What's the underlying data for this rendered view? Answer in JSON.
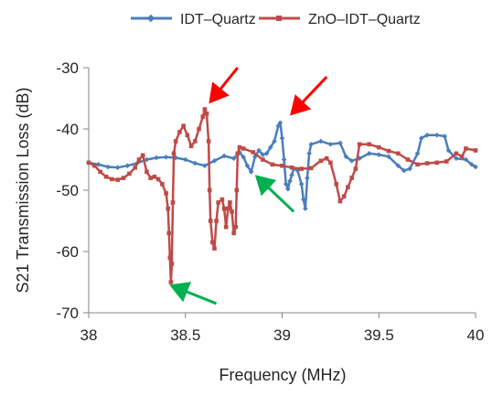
{
  "chart_data": {
    "type": "line",
    "title": "",
    "xlabel": "Frequency (MHz)",
    "ylabel": "S21 Transmission Loss (dB)",
    "xlim": [
      38,
      40
    ],
    "ylim": [
      -70,
      -30
    ],
    "x_ticks": [
      "38",
      "38.5",
      "39",
      "39.5",
      "40"
    ],
    "y_ticks": [
      "-30",
      "-40",
      "-50",
      "-60",
      "-70"
    ],
    "grid": false,
    "legend_position": "top",
    "series": [
      {
        "name": "IDT–Quartz",
        "color": "#4a7ebb",
        "marker": "diamond",
        "points": [
          [
            38.0,
            -45.5
          ],
          [
            38.05,
            -45.8
          ],
          [
            38.1,
            -46.2
          ],
          [
            38.15,
            -46.3
          ],
          [
            38.2,
            -46.0
          ],
          [
            38.25,
            -45.6
          ],
          [
            38.3,
            -45.0
          ],
          [
            38.35,
            -44.7
          ],
          [
            38.4,
            -44.6
          ],
          [
            38.45,
            -44.7
          ],
          [
            38.5,
            -45.0
          ],
          [
            38.55,
            -45.6
          ],
          [
            38.6,
            -46.0
          ],
          [
            38.65,
            -45.2
          ],
          [
            38.7,
            -44.4
          ],
          [
            38.75,
            -44.8
          ],
          [
            38.78,
            -43.8
          ],
          [
            38.8,
            -44.6
          ],
          [
            38.82,
            -46.0
          ],
          [
            38.84,
            -47.0
          ],
          [
            38.86,
            -44.5
          ],
          [
            38.88,
            -43.5
          ],
          [
            38.9,
            -44.2
          ],
          [
            38.92,
            -44.0
          ],
          [
            38.94,
            -43.0
          ],
          [
            38.96,
            -42.0
          ],
          [
            38.98,
            -39.5
          ],
          [
            38.99,
            -39.0
          ],
          [
            39.0,
            -41.5
          ],
          [
            39.01,
            -45.0
          ],
          [
            39.02,
            -49.0
          ],
          [
            39.03,
            -49.8
          ],
          [
            39.04,
            -48.5
          ],
          [
            39.05,
            -47.5
          ],
          [
            39.06,
            -46.5
          ],
          [
            39.08,
            -46.8
          ],
          [
            39.1,
            -49.0
          ],
          [
            39.11,
            -51.5
          ],
          [
            39.12,
            -53.0
          ],
          [
            39.13,
            -48.0
          ],
          [
            39.14,
            -44.0
          ],
          [
            39.15,
            -42.5
          ],
          [
            39.2,
            -42.0
          ],
          [
            39.25,
            -42.5
          ],
          [
            39.3,
            -42.3
          ],
          [
            39.33,
            -44.5
          ],
          [
            39.36,
            -45.2
          ],
          [
            39.4,
            -44.8
          ],
          [
            39.45,
            -44.0
          ],
          [
            39.5,
            -44.2
          ],
          [
            39.55,
            -44.5
          ],
          [
            39.6,
            -46.0
          ],
          [
            39.63,
            -46.8
          ],
          [
            39.66,
            -46.5
          ],
          [
            39.7,
            -44.0
          ],
          [
            39.72,
            -41.5
          ],
          [
            39.75,
            -41.0
          ],
          [
            39.8,
            -41.0
          ],
          [
            39.84,
            -41.2
          ],
          [
            39.86,
            -43.5
          ],
          [
            39.9,
            -44.8
          ],
          [
            39.95,
            -45.0
          ],
          [
            39.98,
            -45.8
          ],
          [
            40.0,
            -46.2
          ]
        ]
      },
      {
        "name": "ZnO–IDT–Quartz",
        "color": "#be4b48",
        "marker": "square",
        "points": [
          [
            38.0,
            -45.5
          ],
          [
            38.03,
            -46.0
          ],
          [
            38.06,
            -47.0
          ],
          [
            38.09,
            -47.8
          ],
          [
            38.12,
            -48.2
          ],
          [
            38.15,
            -48.3
          ],
          [
            38.18,
            -48.0
          ],
          [
            38.21,
            -47.3
          ],
          [
            38.24,
            -46.3
          ],
          [
            38.26,
            -45.0
          ],
          [
            38.28,
            -44.3
          ],
          [
            38.3,
            -47.0
          ],
          [
            38.32,
            -48.0
          ],
          [
            38.34,
            -47.8
          ],
          [
            38.36,
            -48.2
          ],
          [
            38.38,
            -49.0
          ],
          [
            38.4,
            -50.5
          ],
          [
            38.41,
            -53.0
          ],
          [
            38.415,
            -57.0
          ],
          [
            38.42,
            -61.0
          ],
          [
            38.425,
            -65.0
          ],
          [
            38.43,
            -62.0
          ],
          [
            38.435,
            -52.0
          ],
          [
            38.44,
            -44.0
          ],
          [
            38.45,
            -42.0
          ],
          [
            38.47,
            -40.5
          ],
          [
            38.49,
            -39.5
          ],
          [
            38.51,
            -41.0
          ],
          [
            38.53,
            -42.8
          ],
          [
            38.55,
            -42.0
          ],
          [
            38.57,
            -40.0
          ],
          [
            38.59,
            -38.0
          ],
          [
            38.6,
            -36.8
          ],
          [
            38.61,
            -37.5
          ],
          [
            38.62,
            -42.0
          ],
          [
            38.625,
            -50.0
          ],
          [
            38.63,
            -55.0
          ],
          [
            38.64,
            -58.5
          ],
          [
            38.65,
            -59.5
          ],
          [
            38.66,
            -55.0
          ],
          [
            38.67,
            -52.0
          ],
          [
            38.69,
            -51.5
          ],
          [
            38.7,
            -53.0
          ],
          [
            38.71,
            -56.0
          ],
          [
            38.72,
            -53.0
          ],
          [
            38.73,
            -52.0
          ],
          [
            38.74,
            -53.5
          ],
          [
            38.75,
            -57.0
          ],
          [
            38.76,
            -56.0
          ],
          [
            38.765,
            -50.0
          ],
          [
            38.77,
            -44.0
          ],
          [
            38.78,
            -43.0
          ],
          [
            38.8,
            -43.2
          ],
          [
            38.85,
            -43.8
          ],
          [
            38.9,
            -45.0
          ],
          [
            38.95,
            -45.8
          ],
          [
            39.0,
            -46.0
          ],
          [
            39.05,
            -46.3
          ],
          [
            39.1,
            -46.5
          ],
          [
            39.15,
            -46.4
          ],
          [
            39.2,
            -45.2
          ],
          [
            39.23,
            -44.8
          ],
          [
            39.25,
            -45.5
          ],
          [
            39.28,
            -49.0
          ],
          [
            39.3,
            -51.8
          ],
          [
            39.32,
            -51.0
          ],
          [
            39.34,
            -49.5
          ],
          [
            39.36,
            -48.0
          ],
          [
            39.38,
            -46.5
          ],
          [
            39.4,
            -42.5
          ],
          [
            39.45,
            -42.5
          ],
          [
            39.5,
            -43.0
          ],
          [
            39.55,
            -43.6
          ],
          [
            39.6,
            -44.0
          ],
          [
            39.65,
            -45.0
          ],
          [
            39.7,
            -45.8
          ],
          [
            39.75,
            -45.6
          ],
          [
            39.8,
            -45.5
          ],
          [
            39.85,
            -45.3
          ],
          [
            39.9,
            -44.0
          ],
          [
            39.93,
            -44.5
          ],
          [
            39.95,
            -43.2
          ],
          [
            40.0,
            -43.5
          ]
        ]
      }
    ],
    "annotations": [
      {
        "type": "arrow",
        "color": "#ff0000",
        "from": [
          38.77,
          -30.0
        ],
        "to": [
          38.63,
          -35.5
        ]
      },
      {
        "type": "arrow",
        "color": "#ff0000",
        "from": [
          39.23,
          -31.5
        ],
        "to": [
          39.05,
          -37.5
        ]
      },
      {
        "type": "arrow",
        "color": "#00b050",
        "from": [
          39.06,
          -53.5
        ],
        "to": [
          38.87,
          -47.8
        ]
      },
      {
        "type": "arrow",
        "color": "#00b050",
        "from": [
          38.66,
          -68.5
        ],
        "to": [
          38.43,
          -65.6
        ]
      }
    ]
  }
}
